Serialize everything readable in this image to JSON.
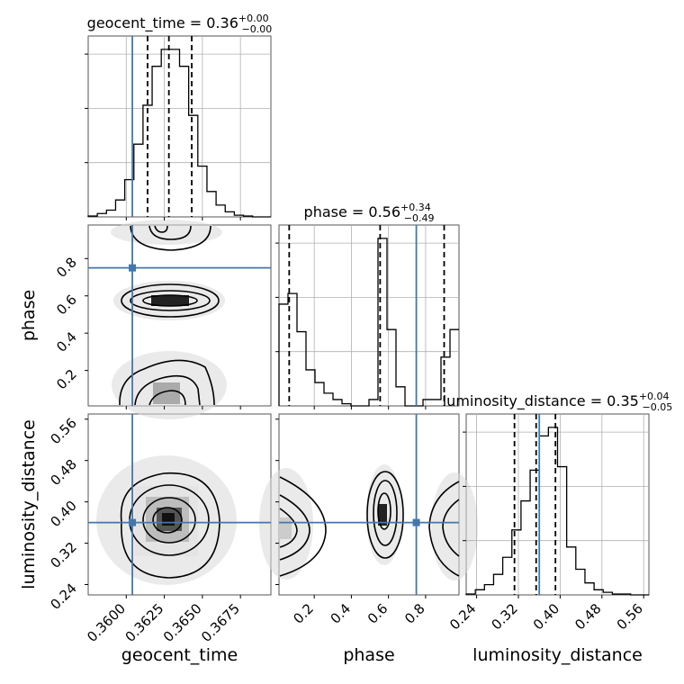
{
  "colors": {
    "truth": "#4477aa",
    "hist": "#000000",
    "grid": "#b0b0b0",
    "points": "#8c8c8c"
  },
  "chart_data": {
    "type": "corner",
    "parameters": [
      "geocent_time",
      "phase",
      "luminosity_distance"
    ],
    "titles": [
      {
        "name": "geocent_time",
        "median": "0.36",
        "plus": "+0.00",
        "minus": "−0.00"
      },
      {
        "name": "phase",
        "median": "0.56",
        "plus": "+0.34",
        "minus": "−0.49"
      },
      {
        "name": "luminosity_distance",
        "median": "0.35",
        "plus": "+0.04",
        "minus": "−0.05"
      }
    ],
    "axes": {
      "geocent_time": {
        "lim": [
          0.3575,
          0.3695
        ],
        "ticks": [
          "0.3600",
          "0.3625",
          "0.3650",
          "0.3675"
        ],
        "tick_values": [
          0.36,
          0.3625,
          0.365,
          0.3675
        ]
      },
      "phase": {
        "lim": [
          0.01,
          0.98
        ],
        "ticks": [
          "0.2",
          "0.4",
          "0.6",
          "0.8"
        ],
        "tick_values": [
          0.2,
          0.4,
          0.6,
          0.8
        ]
      },
      "luminosity_distance": {
        "lim": [
          0.22,
          0.57
        ],
        "ticks": [
          "0.24",
          "0.32",
          "0.40",
          "0.48",
          "0.56"
        ],
        "tick_values": [
          0.24,
          0.32,
          0.4,
          0.48,
          0.56
        ]
      }
    },
    "truths": {
      "geocent_time": 0.3604,
      "phase": 0.75,
      "luminosity_distance": 0.36
    },
    "marginals": {
      "geocent_time": {
        "edges": [
          0.3575,
          0.3581,
          0.3587,
          0.3593,
          0.3599,
          0.3605,
          0.3611,
          0.3617,
          0.3623,
          0.3629,
          0.3635,
          0.3641,
          0.3647,
          0.3653,
          0.3659,
          0.3665,
          0.3671,
          0.3677,
          0.3683,
          0.3689,
          0.3695
        ],
        "counts": [
          0.5,
          2,
          4,
          10,
          22,
          43,
          66,
          89,
          99,
          99,
          89,
          60,
          30,
          15,
          7,
          3,
          1,
          0.5,
          0,
          0
        ],
        "quantiles": [
          0.3614,
          0.3628,
          0.3643
        ]
      },
      "phase": {
        "edges": [
          0.01,
          0.0585,
          0.107,
          0.1555,
          0.204,
          0.2525,
          0.301,
          0.3495,
          0.398,
          0.4465,
          0.495,
          0.5435,
          0.592,
          0.6405,
          0.689,
          0.7375,
          0.786,
          0.8345,
          0.883,
          0.9315,
          0.98
        ],
        "counts": [
          48,
          53,
          35,
          17,
          11,
          6,
          3,
          1,
          0,
          0,
          3,
          79,
          36,
          9,
          0,
          0,
          3,
          3,
          23,
          36
        ],
        "quantiles": [
          0.065,
          0.555,
          0.9
        ]
      },
      "luminosity_distance": {
        "edges": [
          0.22,
          0.2375,
          0.255,
          0.2725,
          0.29,
          0.3075,
          0.325,
          0.3425,
          0.36,
          0.3775,
          0.395,
          0.4125,
          0.43,
          0.4475,
          0.465,
          0.4825,
          0.5,
          0.5175,
          0.535,
          0.5525,
          0.57
        ],
        "counts": [
          0.5,
          3,
          6,
          12,
          22,
          38,
          55,
          73,
          93,
          98,
          75,
          28,
          15,
          7,
          3,
          1.5,
          0.5,
          0.5,
          0,
          0
        ],
        "quantiles": [
          0.3125,
          0.354,
          0.391
        ]
      }
    },
    "ylabels": [
      "phase",
      "luminosity_distance"
    ],
    "xlabels": [
      "geocent_time",
      "phase",
      "luminosity_distance"
    ]
  }
}
